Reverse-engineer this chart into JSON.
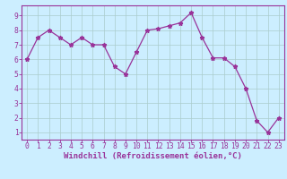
{
  "x": [
    0,
    1,
    2,
    3,
    4,
    5,
    6,
    7,
    8,
    9,
    10,
    11,
    12,
    13,
    14,
    15,
    16,
    17,
    18,
    19,
    20,
    21,
    22,
    23
  ],
  "y": [
    6.0,
    7.5,
    8.0,
    7.5,
    7.0,
    7.5,
    7.0,
    7.0,
    5.5,
    5.0,
    6.5,
    8.0,
    8.1,
    8.3,
    8.5,
    9.2,
    7.5,
    6.1,
    6.1,
    5.5,
    4.0,
    1.8,
    1.0,
    2.0
  ],
  "line_color": "#993399",
  "marker": "*",
  "marker_size": 3.5,
  "xlabel": "Windchill (Refroidissement éolien,°C)",
  "ylim": [
    0.5,
    9.7
  ],
  "xlim": [
    -0.5,
    23.5
  ],
  "yticks": [
    1,
    2,
    3,
    4,
    5,
    6,
    7,
    8,
    9
  ],
  "xticks": [
    0,
    1,
    2,
    3,
    4,
    5,
    6,
    7,
    8,
    9,
    10,
    11,
    12,
    13,
    14,
    15,
    16,
    17,
    18,
    19,
    20,
    21,
    22,
    23
  ],
  "bg_color": "#cceeff",
  "grid_color": "#aacccc",
  "axis_color": "#993399",
  "tick_color": "#993399",
  "label_color": "#993399",
  "font_size_xlabel": 6.5,
  "font_size_ticks": 5.8,
  "linewidth": 0.9
}
